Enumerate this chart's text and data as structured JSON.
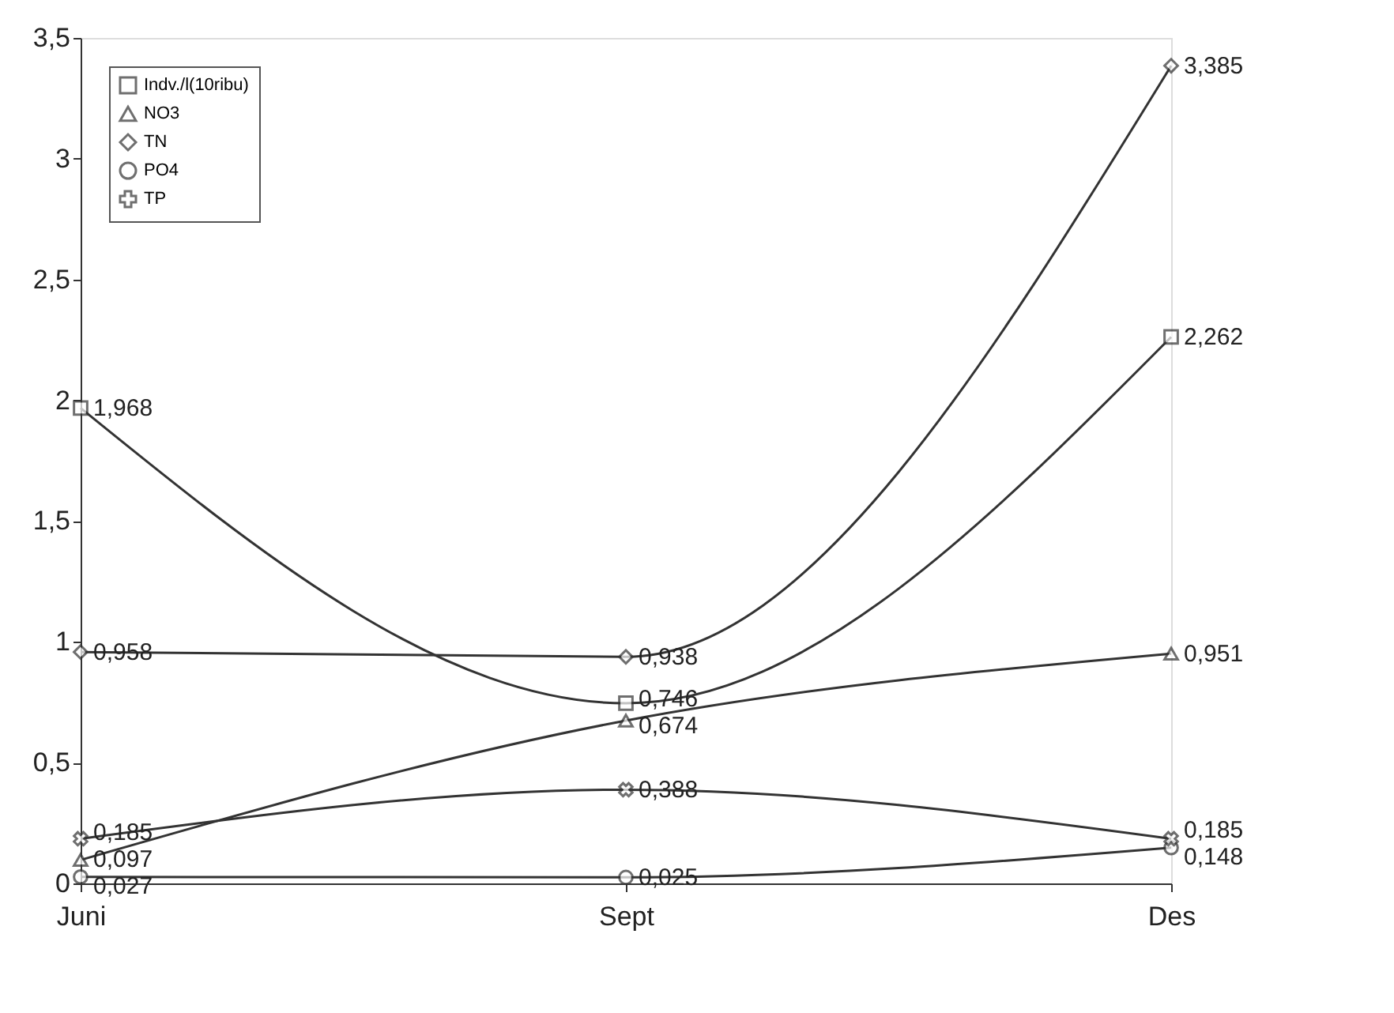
{
  "chart_data": {
    "type": "line",
    "categories": [
      "Juni",
      "Sept",
      "Des"
    ],
    "series": [
      {
        "name": "Indv./l(10ribu)",
        "color": "#333333",
        "marker": "square",
        "values": [
          1.968,
          0.746,
          2.262
        ],
        "value_labels": [
          "1,968",
          "0,746",
          "2,262"
        ]
      },
      {
        "name": "NO3",
        "color": "#333333",
        "marker": "triangle",
        "values": [
          0.097,
          0.674,
          0.951
        ],
        "value_labels": [
          "0,097",
          "0,674",
          "0,951"
        ]
      },
      {
        "name": "TN",
        "color": "#333333",
        "marker": "diamond",
        "values": [
          0.958,
          0.938,
          3.385
        ],
        "value_labels": [
          "0,958",
          "0,938",
          "3,385"
        ]
      },
      {
        "name": "PO4",
        "color": "#333333",
        "marker": "circle",
        "values": [
          0.027,
          0.025,
          0.148
        ],
        "value_labels": [
          "0,027",
          "0,025",
          "0,148"
        ]
      },
      {
        "name": "TP",
        "color": "#333333",
        "marker": "cross",
        "values": [
          0.185,
          0.388,
          0.185
        ],
        "value_labels": [
          "0,185",
          "0,388",
          "0,185"
        ]
      }
    ],
    "ylim": [
      0,
      3.5
    ],
    "yticks": [
      0,
      {
        "value": 0.5,
        "label": "0,5"
      },
      1,
      {
        "value": 1.5,
        "label": "1,5"
      },
      2,
      {
        "value": 2.5,
        "label": "2,5"
      },
      3,
      {
        "value": 3.5,
        "label": "3,5"
      }
    ],
    "grid": false,
    "legend": "top left",
    "line_style": "solid"
  }
}
